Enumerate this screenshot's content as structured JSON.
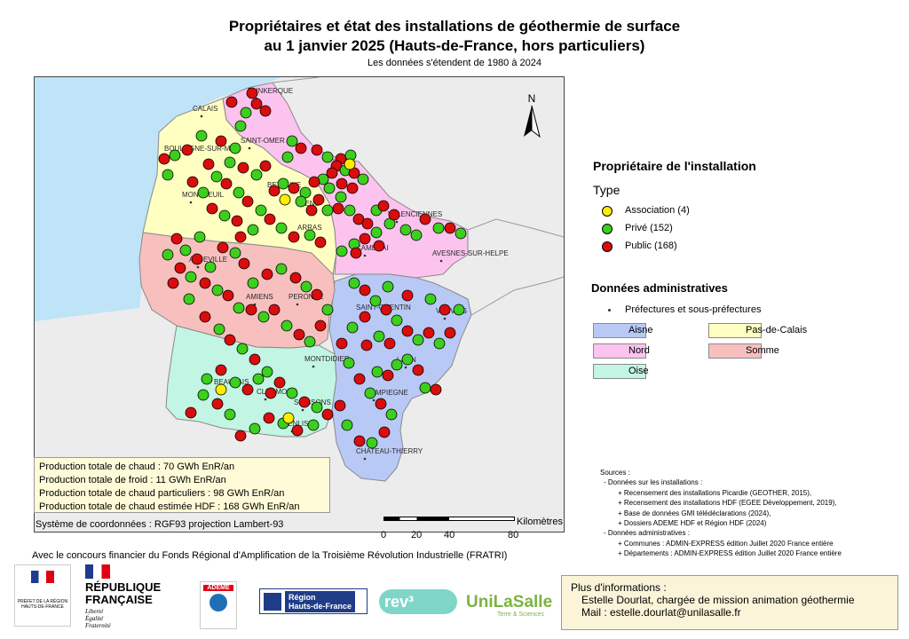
{
  "title_line1": "Propriétaires et état des installations de géothermie de surface",
  "title_line2": "au 1 janvier 2025 (Hauts-de-France, hors particuliers)",
  "subtitle": "Les données s'étendent de 1980 à 2024",
  "north_label": "N",
  "legend": {
    "owner_title": "Propriétaire de l'installation",
    "type_title": "Type",
    "types": [
      {
        "label": "Association (4)",
        "color": "#ffec00"
      },
      {
        "label": "Privé (152)",
        "color": "#3ccf1e"
      },
      {
        "label": "Public (168)",
        "color": "#d90d0d"
      }
    ],
    "admin_title": "Données administratives",
    "prefectures_label": "Préfectures et sous-préfectures",
    "departments": [
      {
        "label": "Aisne",
        "color": "#b9c9f5"
      },
      {
        "label": "Pas-de-Calais",
        "color": "#ffffc1"
      },
      {
        "label": "Nord",
        "color": "#fbc3ee"
      },
      {
        "label": "Somme",
        "color": "#f7c0bf"
      },
      {
        "label": "Oise",
        "color": "#c2f5e3"
      }
    ]
  },
  "colors": {
    "sea": "#bfe3f7",
    "outside": "#e8e8e8",
    "border": "#8a8a8a"
  },
  "cities": [
    "DUNKERQUE",
    "CALAIS",
    "SAINT-OMER",
    "BOULOGNE-SUR-MER",
    "LILLE",
    "BETHUNE",
    "MONTREUIL",
    "LENS",
    "VALENCIENNES",
    "ARRAS",
    "CAMBRAI",
    "AVESNES-SUR-HELPE",
    "ABBEVILLE",
    "AMIENS",
    "PERONNE",
    "SAINT-QUENTIN",
    "VERVINS",
    "MONTDIDIER",
    "LAON",
    "BEAUVAIS",
    "CLERMONT",
    "SOISSONS",
    "COMPIEGNE",
    "SENLIS",
    "CHATEAU-THIERRY"
  ],
  "production": [
    "Production totale de chaud : 70 GWh EnR/an",
    "Production totale de froid : 11 GWh EnR/an",
    "Production totale de chaud particuliers : 98 GWh EnR/an",
    "Production totale de chaud estimée HDF : 168 GWh EnR/an"
  ],
  "coord_system": "Système de coordonnées : RGF93 projection Lambert-93",
  "scale": {
    "unit": "Kilomètres",
    "ticks": [
      "0",
      "20",
      "40",
      "80"
    ]
  },
  "sources": [
    "Sources :",
    "- Données sur les installations :",
    "+ Recensement des installations Picardie (GEOTHER, 2015),",
    "+ Recensement des installations HDF (EGEE Développement, 2019),",
    "+ Base de données GMI télédéclarations (2024),",
    "+ Dossiers ADEME HDF et Région HDF (2024)",
    "- Données administratives :",
    "+ Communes : ADMIN-EXPRESS édition Juillet 2020 France entière",
    "+ Départements : ADMIN-EXPRESS édition Juillet 2020 France entière"
  ],
  "funding": "Avec le concours financier du Fonds Régional d'Amplification de la Troisième Révolution Industrielle (FRATRI)",
  "info": {
    "title": "Plus d'informations :",
    "person": "Estelle Dourlat, chargée de mission animation géothermie",
    "mail": "Mail : estelle.dourlat@unilasalle.fr"
  },
  "logos": {
    "prefet": "PRÉFET DE LA RÉGION HAUTS-DE-FRANCE",
    "rf1": "RÉPUBLIQUE",
    "rf2": "FRANÇAISE",
    "rf_motto": [
      "Liberté",
      "Égalité",
      "Fraternité"
    ],
    "ademe": "ADEME",
    "region1": "Région",
    "region2": "Hauts-de-France",
    "rev3": "rev³",
    "unilasalle": "UniLaSalle",
    "unilasalle_sub": "Terre & Sciences"
  }
}
